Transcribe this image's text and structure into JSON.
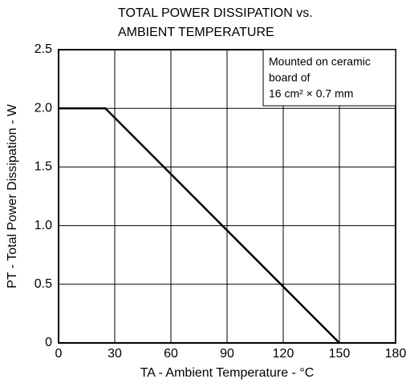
{
  "chart_data": {
    "type": "line",
    "title": [
      "TOTAL POWER DISSIPATION vs.",
      "AMBIENT TEMPERATURE"
    ],
    "xlabel": "TA - Ambient Temperature - °C",
    "ylabel": "PT - Total Power Dissipation - W",
    "annotation": [
      "Mounted on ceramic",
      "board of",
      "16 cm² × 0.7 mm"
    ],
    "x": [
      0,
      25,
      150
    ],
    "series": [
      {
        "color": "#000000",
        "values": [
          2,
          2,
          0
        ]
      }
    ],
    "xlim": [
      0,
      180
    ],
    "xticks": [
      0,
      30,
      60,
      90,
      120,
      150,
      180
    ],
    "ylim": [
      0,
      2.5
    ],
    "yticks": [
      0,
      0.5,
      {
        "value": 1,
        "label": "1.0"
      },
      {
        "value": 1.5,
        "label": "1.5"
      },
      {
        "value": 2,
        "label": "2.0"
      },
      {
        "value": 2.5,
        "label": "2.5"
      }
    ],
    "grid": true
  }
}
